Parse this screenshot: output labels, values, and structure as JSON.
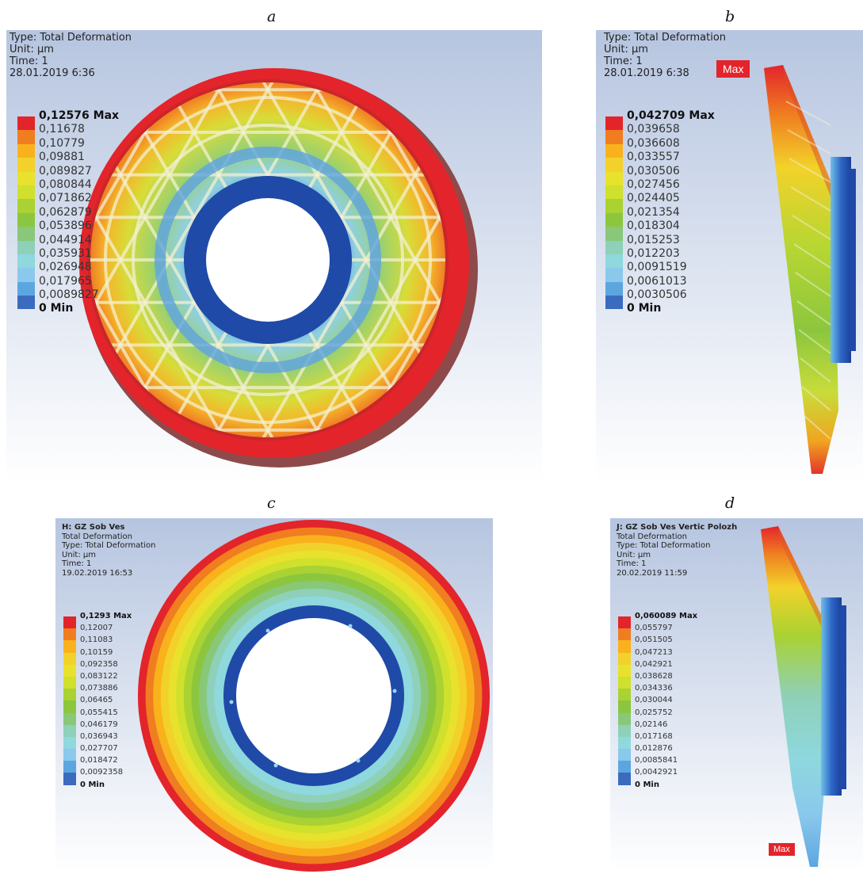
{
  "panels": [
    {
      "letter": "a",
      "info": [
        "Type: Total Deformation",
        "Unit: µm",
        "Time: 1",
        "28.01.2019 6:36"
      ],
      "legend": [
        "0,12576 Max",
        "0,11678",
        "0,10779",
        "0,09881",
        "0,089827",
        "0,080844",
        "0,071862",
        "0,062879",
        "0,053896",
        "0,044914",
        "0,035931",
        "0,026948",
        "0,017965",
        "0,0089827",
        "0 Min"
      ]
    },
    {
      "letter": "b",
      "info": [
        "Type: Total Deformation",
        "Unit: µm",
        "Time: 1",
        "28.01.2019 6:38"
      ],
      "legend": [
        "0,042709 Max",
        "0,039658",
        "0,036608",
        "0,033557",
        "0,030506",
        "0,027456",
        "0,024405",
        "0,021354",
        "0,018304",
        "0,015253",
        "0,012203",
        "0,0091519",
        "0,0061013",
        "0,0030506",
        "0 Min"
      ],
      "max_tag": "Max"
    },
    {
      "letter": "c",
      "info": [
        "H: GZ Sob Ves",
        "Total Deformation",
        "Type: Total Deformation",
        "Unit: µm",
        "Time: 1",
        "19.02.2019 16:53"
      ],
      "legend": [
        "0,1293 Max",
        "0,12007",
        "0,11083",
        "0,10159",
        "0,092358",
        "0,083122",
        "0,073886",
        "0,06465",
        "0,055415",
        "0,046179",
        "0,036943",
        "0,027707",
        "0,018472",
        "0,0092358",
        "0 Min"
      ]
    },
    {
      "letter": "d",
      "info": [
        "J: GZ Sob Ves Vertic Polozh",
        "Total Deformation",
        "Type: Total Deformation",
        "Unit: µm",
        "Time: 1",
        "20.02.2019 11:59"
      ],
      "legend": [
        "0,060089 Max",
        "0,055797",
        "0,051505",
        "0,047213",
        "0,042921",
        "0,038628",
        "0,034336",
        "0,030044",
        "0,025752",
        "0,02146",
        "0,017168",
        "0,012876",
        "0,0085841",
        "0,0042921",
        "0 Min"
      ],
      "max_tag": "Max"
    }
  ],
  "colors": {
    "scale": [
      "#e3242b",
      "#f07d20",
      "#f9b21c",
      "#f2d22a",
      "#e8e22c",
      "#cfe02d",
      "#a9d232",
      "#8cc63e",
      "#88c878",
      "#8fd0b8",
      "#8ed8de",
      "#8ac8ec",
      "#5ca6e0",
      "#3b6bbf"
    ],
    "background_top": "#b6c5e0",
    "background_bottom": "#ffffff",
    "hub_blue": "#1f4aa8"
  }
}
